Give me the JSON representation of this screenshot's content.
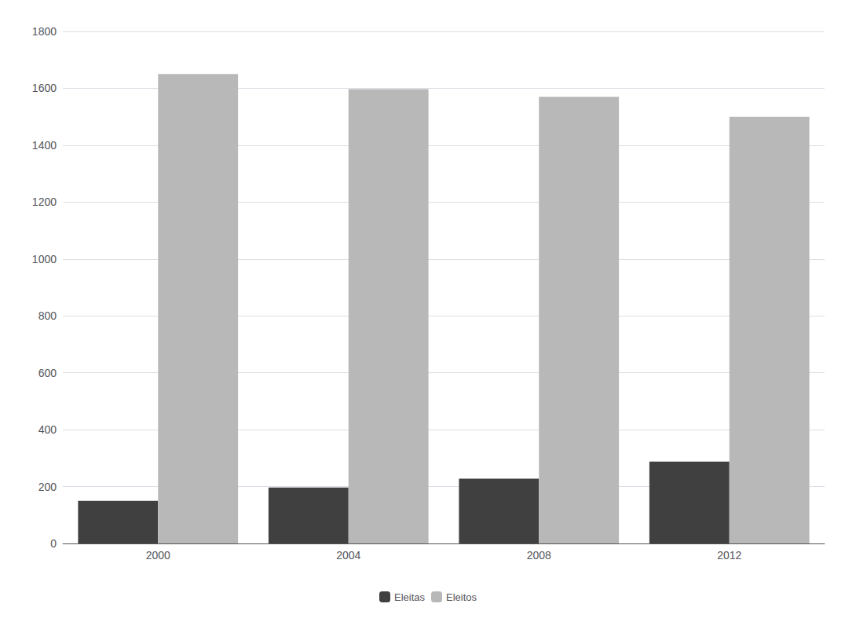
{
  "chart_data": {
    "type": "bar",
    "categories": [
      "2000",
      "2004",
      "2008",
      "2012"
    ],
    "series": [
      {
        "name": "Eleitas",
        "color": "#404040",
        "values": [
          150,
          197,
          228,
          288
        ]
      },
      {
        "name": "Eleitos",
        "color": "#b8b8b8",
        "values": [
          1650,
          1597,
          1570,
          1500
        ]
      }
    ],
    "ylim": [
      0,
      1800
    ],
    "yticks": [
      0,
      200,
      400,
      600,
      800,
      1000,
      1200,
      1400,
      1600,
      1800
    ],
    "grid": true,
    "legend": "bottom"
  }
}
